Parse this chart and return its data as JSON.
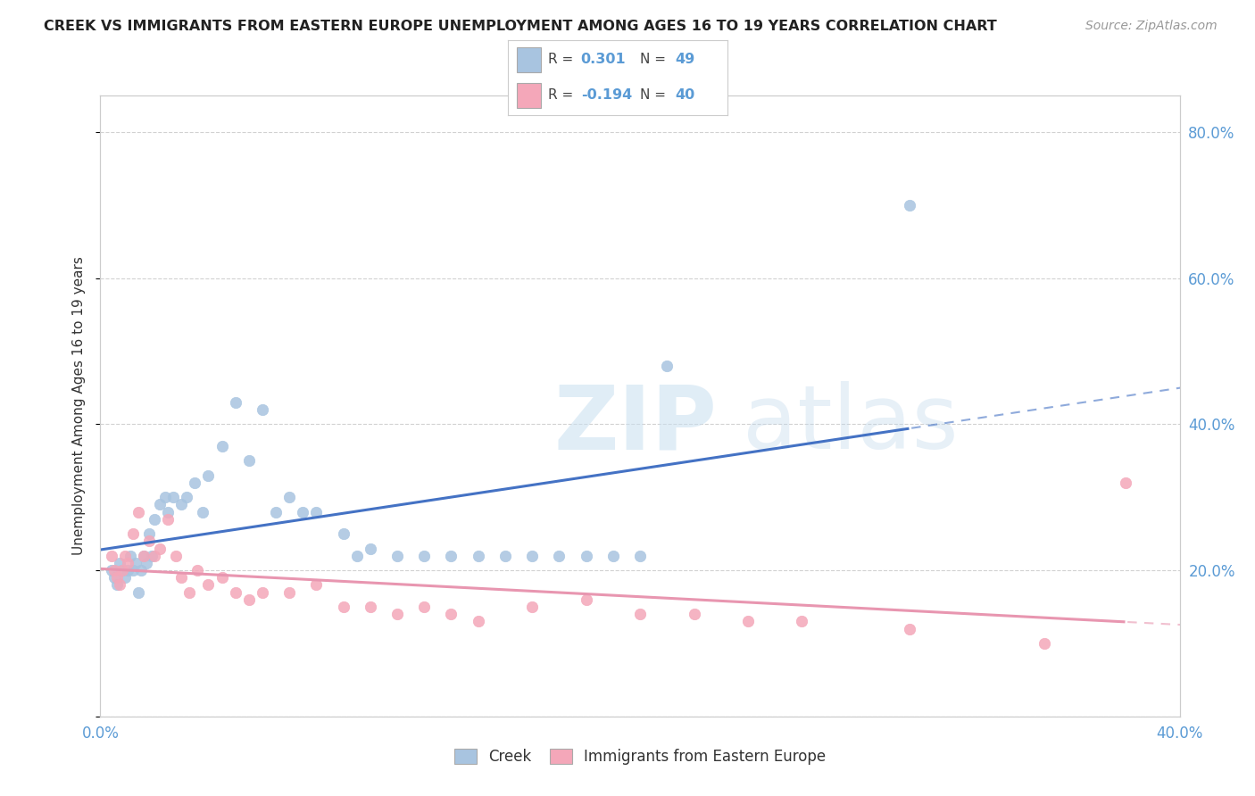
{
  "title": "CREEK VS IMMIGRANTS FROM EASTERN EUROPE UNEMPLOYMENT AMONG AGES 16 TO 19 YEARS CORRELATION CHART",
  "source": "Source: ZipAtlas.com",
  "ylabel": "Unemployment Among Ages 16 to 19 years",
  "xlim": [
    0.0,
    0.4
  ],
  "ylim": [
    0.0,
    0.85
  ],
  "xtick_positions": [
    0.0,
    0.05,
    0.1,
    0.15,
    0.2,
    0.25,
    0.3,
    0.35,
    0.4
  ],
  "xtick_labels": [
    "0.0%",
    "",
    "",
    "",
    "",
    "",
    "",
    "",
    "40.0%"
  ],
  "ytick_positions": [
    0.0,
    0.2,
    0.4,
    0.6,
    0.8
  ],
  "ytick_labels_right": [
    "",
    "20.0%",
    "40.0%",
    "60.0%",
    "80.0%"
  ],
  "creek_color": "#a8c4e0",
  "eastern_color": "#f4a7b9",
  "creek_line_color": "#4472c4",
  "eastern_line_color": "#e896b0",
  "creek_R": 0.301,
  "creek_N": 49,
  "eastern_R": -0.194,
  "eastern_N": 40,
  "creek_x": [
    0.004,
    0.005,
    0.006,
    0.007,
    0.008,
    0.009,
    0.01,
    0.011,
    0.012,
    0.013,
    0.014,
    0.015,
    0.016,
    0.017,
    0.018,
    0.019,
    0.02,
    0.022,
    0.024,
    0.025,
    0.027,
    0.03,
    0.032,
    0.035,
    0.038,
    0.04,
    0.045,
    0.05,
    0.055,
    0.06,
    0.065,
    0.07,
    0.075,
    0.08,
    0.09,
    0.095,
    0.1,
    0.11,
    0.12,
    0.13,
    0.14,
    0.15,
    0.16,
    0.17,
    0.18,
    0.19,
    0.2,
    0.21,
    0.3
  ],
  "creek_y": [
    0.2,
    0.19,
    0.18,
    0.21,
    0.2,
    0.19,
    0.2,
    0.22,
    0.2,
    0.21,
    0.17,
    0.2,
    0.22,
    0.21,
    0.25,
    0.22,
    0.27,
    0.29,
    0.3,
    0.28,
    0.3,
    0.29,
    0.3,
    0.32,
    0.28,
    0.33,
    0.37,
    0.43,
    0.35,
    0.42,
    0.28,
    0.3,
    0.28,
    0.28,
    0.25,
    0.22,
    0.23,
    0.22,
    0.22,
    0.22,
    0.22,
    0.22,
    0.22,
    0.22,
    0.22,
    0.22,
    0.22,
    0.48,
    0.7
  ],
  "eastern_x": [
    0.004,
    0.005,
    0.006,
    0.007,
    0.008,
    0.009,
    0.01,
    0.012,
    0.014,
    0.016,
    0.018,
    0.02,
    0.022,
    0.025,
    0.028,
    0.03,
    0.033,
    0.036,
    0.04,
    0.045,
    0.05,
    0.055,
    0.06,
    0.07,
    0.08,
    0.09,
    0.1,
    0.11,
    0.12,
    0.13,
    0.14,
    0.16,
    0.18,
    0.2,
    0.22,
    0.24,
    0.26,
    0.3,
    0.35,
    0.38
  ],
  "eastern_y": [
    0.22,
    0.2,
    0.19,
    0.18,
    0.2,
    0.22,
    0.21,
    0.25,
    0.28,
    0.22,
    0.24,
    0.22,
    0.23,
    0.27,
    0.22,
    0.19,
    0.17,
    0.2,
    0.18,
    0.19,
    0.17,
    0.16,
    0.17,
    0.17,
    0.18,
    0.15,
    0.15,
    0.14,
    0.15,
    0.14,
    0.13,
    0.15,
    0.16,
    0.14,
    0.14,
    0.13,
    0.13,
    0.12,
    0.1,
    0.32
  ],
  "background_color": "#ffffff",
  "grid_color": "#cccccc",
  "tick_color": "#5b9bd5",
  "label_color": "#333333"
}
